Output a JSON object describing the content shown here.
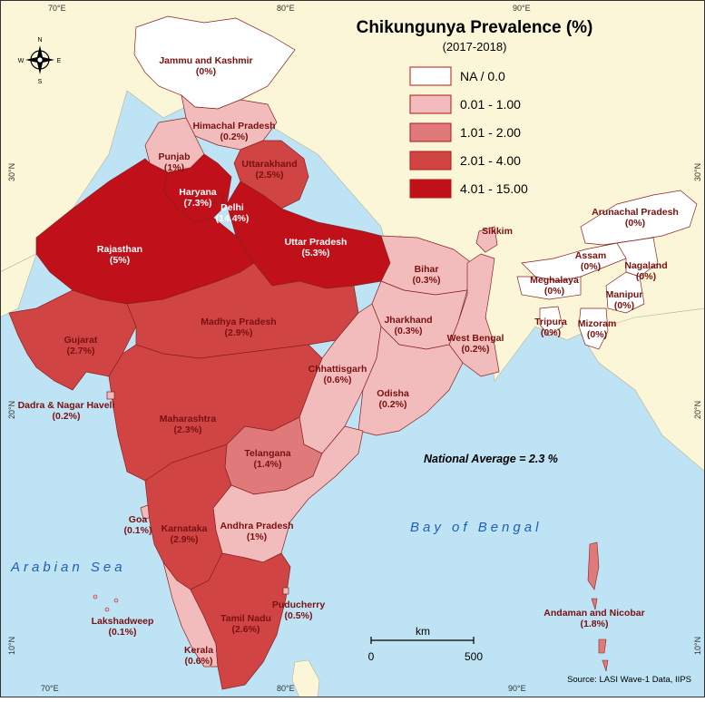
{
  "title": "Chikungunya Prevalence (%)",
  "subtitle": "(2017-2018)",
  "legend": [
    {
      "label": "NA / 0.0",
      "color": "#ffffff"
    },
    {
      "label": "0.01 - 1.00",
      "color": "#f2bcbc"
    },
    {
      "label": "1.01 - 2.00",
      "color": "#e07a7a"
    },
    {
      "label": "2.01 - 4.00",
      "color": "#d04444"
    },
    {
      "label": "4.01 - 15.00",
      "color": "#c0101a"
    }
  ],
  "national_average": "National Average = 2.3 %",
  "source": "Source: LASI Wave-1 Data, IIPS",
  "scale": {
    "unit": "km",
    "start": "0",
    "end": "500"
  },
  "compass": {
    "n": "N",
    "s": "S",
    "e": "E",
    "w": "W"
  },
  "ticks": {
    "top": [
      "70°E",
      "80°E",
      "90°E"
    ],
    "bottom": [
      "70°E",
      "80°E",
      "90°E"
    ],
    "left": [
      "30°N",
      "20°N",
      "10°N"
    ],
    "right": [
      "30°N",
      "20°N",
      "10°N"
    ]
  },
  "seas": {
    "arabian": "Arabian Sea",
    "bengal": "Bay of Bengal"
  },
  "regions": [
    {
      "name": "Jammu and Kashmir",
      "value": "(0%)",
      "color": "#ffffff"
    },
    {
      "name": "Himachal Pradesh",
      "value": "(0.2%)",
      "color": "#f2bcbc"
    },
    {
      "name": "Punjab",
      "value": "(1%)",
      "color": "#f2bcbc"
    },
    {
      "name": "Uttarakhand",
      "value": "(2.5%)",
      "color": "#d04444"
    },
    {
      "name": "Haryana",
      "value": "(7.3%)",
      "color": "#c0101a"
    },
    {
      "name": "Delhi",
      "value": "(14.4%)",
      "color": "#c0101a"
    },
    {
      "name": "Rajasthan",
      "value": "(5%)",
      "color": "#c0101a"
    },
    {
      "name": "Uttar Pradesh",
      "value": "(5.3%)",
      "color": "#c0101a"
    },
    {
      "name": "Bihar",
      "value": "(0.3%)",
      "color": "#f2bcbc"
    },
    {
      "name": "Sikkim",
      "value": "",
      "color": "#f2bcbc"
    },
    {
      "name": "Arunachal Pradesh",
      "value": "(0%)",
      "color": "#ffffff"
    },
    {
      "name": "Assam",
      "value": "(0%)",
      "color": "#ffffff"
    },
    {
      "name": "Nagaland",
      "value": "(0%)",
      "color": "#ffffff"
    },
    {
      "name": "Meghalaya",
      "value": "(0%)",
      "color": "#ffffff"
    },
    {
      "name": "Manipur",
      "value": "(0%)",
      "color": "#ffffff"
    },
    {
      "name": "Tripura",
      "value": "(0%)",
      "color": "#ffffff"
    },
    {
      "name": "Mizoram",
      "value": "(0%)",
      "color": "#ffffff"
    },
    {
      "name": "Gujarat",
      "value": "(2.7%)",
      "color": "#d04444"
    },
    {
      "name": "Madhya Pradesh",
      "value": "(2.9%)",
      "color": "#d04444"
    },
    {
      "name": "Jharkhand",
      "value": "(0.3%)",
      "color": "#f2bcbc"
    },
    {
      "name": "West Bengal",
      "value": "(0.2%)",
      "color": "#f2bcbc"
    },
    {
      "name": "Chhattisgarh",
      "value": "(0.6%)",
      "color": "#f2bcbc"
    },
    {
      "name": "Odisha",
      "value": "(0.2%)",
      "color": "#f2bcbc"
    },
    {
      "name": "Dadra & Nagar Haveli",
      "value": "(0.2%)",
      "color": "#f2bcbc"
    },
    {
      "name": "Maharashtra",
      "value": "(2.3%)",
      "color": "#d04444"
    },
    {
      "name": "Telangana",
      "value": "(1.4%)",
      "color": "#e07a7a"
    },
    {
      "name": "Goa",
      "value": "(0.1%)",
      "color": "#f2bcbc"
    },
    {
      "name": "Karnataka",
      "value": "(2.9%)",
      "color": "#d04444"
    },
    {
      "name": "Andhra Pradesh",
      "value": "(1%)",
      "color": "#f2bcbc"
    },
    {
      "name": "Lakshadweep",
      "value": "(0.1%)",
      "color": "#f2bcbc"
    },
    {
      "name": "Puducherry",
      "value": "(0.5%)",
      "color": "#f2bcbc"
    },
    {
      "name": "Tamil Nadu",
      "value": "(2.6%)",
      "color": "#d04444"
    },
    {
      "name": "Kerala",
      "value": "(0.6%)",
      "color": "#f2bcbc"
    },
    {
      "name": "Andaman and Nicobar",
      "value": "(1.8%)",
      "color": "#e07a7a"
    }
  ]
}
